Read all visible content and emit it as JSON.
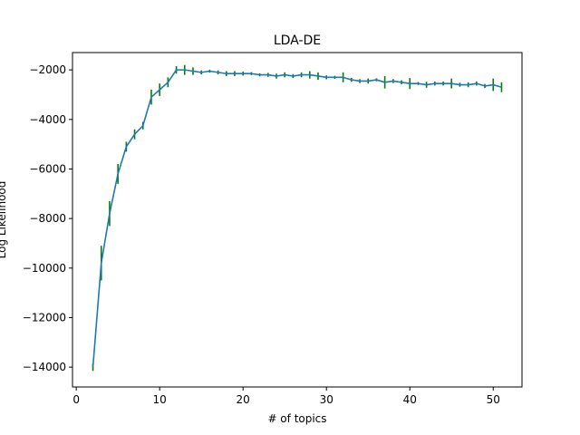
{
  "chart_data": {
    "type": "line",
    "title": "LDA-DE",
    "xlabel": "# of topics",
    "ylabel": "Log Likelihood",
    "xlim": [
      -0.45,
      53.45
    ],
    "ylim": [
      -14800,
      -1300
    ],
    "xticks": [
      0,
      10,
      20,
      30,
      40,
      50
    ],
    "yticks": [
      -14000,
      -12000,
      -10000,
      -8000,
      -6000,
      -4000,
      -2000
    ],
    "grid": false,
    "colors": {
      "line": "#1f77b4",
      "errorbar": "#008000"
    },
    "series": [
      {
        "x": [
          2,
          3,
          4,
          5,
          6,
          7,
          8,
          9,
          10,
          11,
          12,
          13,
          14,
          15,
          16,
          17,
          18,
          19,
          20,
          21,
          22,
          23,
          24,
          25,
          26,
          27,
          28,
          29,
          30,
          31,
          32,
          33,
          34,
          35,
          36,
          37,
          38,
          39,
          40,
          41,
          42,
          43,
          44,
          45,
          46,
          47,
          48,
          49,
          50,
          51
        ],
        "y": [
          -14000,
          -9800,
          -7800,
          -6200,
          -5100,
          -4600,
          -4250,
          -3100,
          -2800,
          -2500,
          -2000,
          -2000,
          -2050,
          -2100,
          -2050,
          -2100,
          -2150,
          -2150,
          -2150,
          -2150,
          -2200,
          -2200,
          -2250,
          -2200,
          -2250,
          -2200,
          -2200,
          -2250,
          -2300,
          -2300,
          -2300,
          -2400,
          -2450,
          -2450,
          -2400,
          -2500,
          -2450,
          -2500,
          -2550,
          -2550,
          -2600,
          -2550,
          -2550,
          -2550,
          -2600,
          -2600,
          -2550,
          -2650,
          -2600,
          -2700
        ],
        "err": [
          150,
          700,
          500,
          400,
          200,
          200,
          150,
          300,
          250,
          200,
          150,
          200,
          150,
          80,
          60,
          80,
          100,
          100,
          80,
          60,
          60,
          80,
          100,
          100,
          80,
          100,
          150,
          150,
          80,
          60,
          200,
          80,
          80,
          100,
          60,
          250,
          80,
          80,
          220,
          60,
          120,
          80,
          80,
          200,
          80,
          100,
          80,
          80,
          250,
          200
        ]
      }
    ]
  }
}
